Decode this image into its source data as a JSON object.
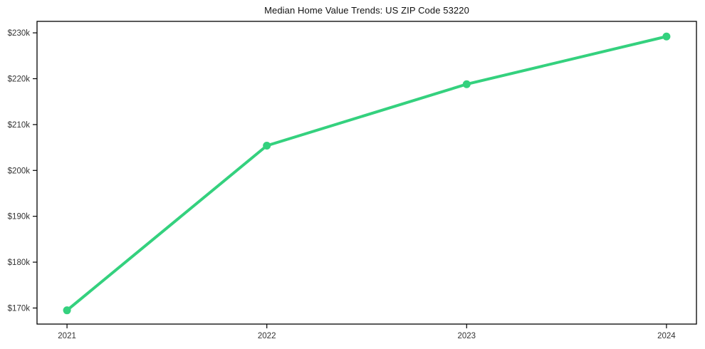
{
  "chart_data": {
    "type": "line",
    "title": "Median Home Value Trends: US ZIP Code 53220",
    "x": [
      2021,
      2022,
      2023,
      2024
    ],
    "x_tick_labels": [
      "2021",
      "2022",
      "2023",
      "2024"
    ],
    "values": [
      169.5,
      205.4,
      218.8,
      229.2
    ],
    "values_unit": "USD thousands",
    "y_tick_values": [
      170,
      180,
      190,
      200,
      210,
      220,
      230
    ],
    "y_tick_labels": [
      "$170k",
      "$180k",
      "$190k",
      "$200k",
      "$210k",
      "$220k",
      "$230k"
    ],
    "xlim": [
      2020.85,
      2024.15
    ],
    "ylim": [
      166.5,
      232.5
    ],
    "grid": false,
    "legend": "none",
    "line_color": "#34d17e",
    "marker": "circle",
    "background": "#ffffff",
    "frame_color": "#000000",
    "tick_label_color": "#333333"
  }
}
